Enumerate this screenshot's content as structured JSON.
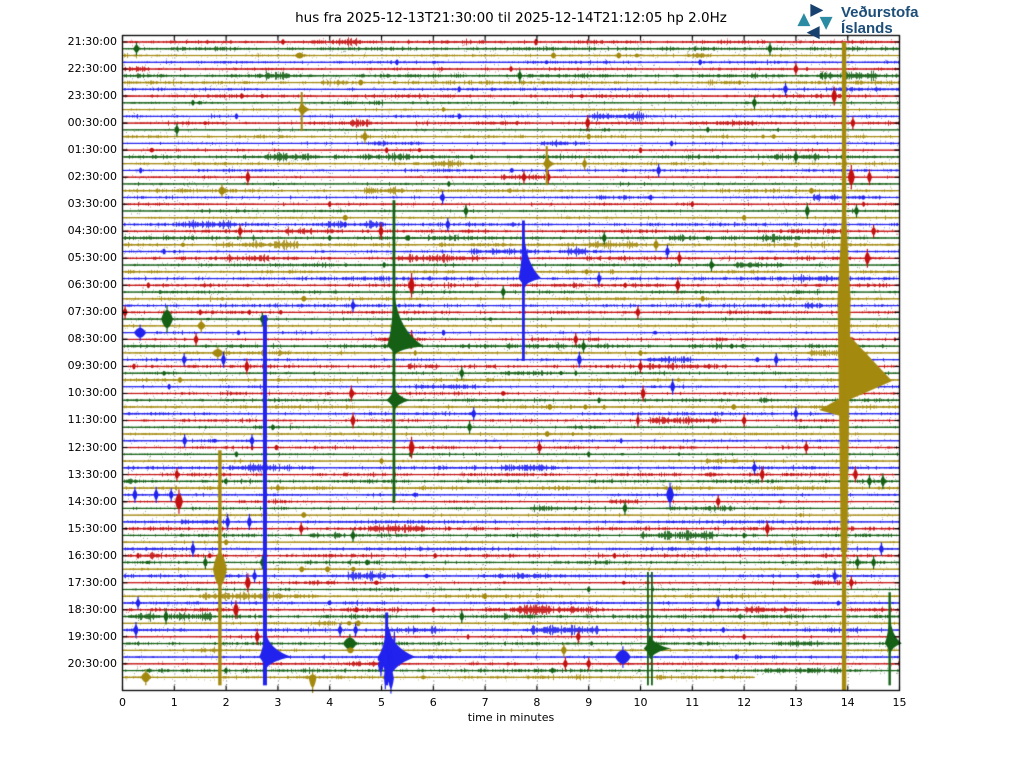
{
  "title": "hus fra 2025-12-13T21:30:00 til 2025-12-14T21:12:05 hp 2.0Hz",
  "logo": {
    "line1": "Veðurstofa",
    "line2": "Íslands",
    "navy": "#17416e",
    "teal": "#2b8ba3",
    "text_color": "#1c4e79"
  },
  "axis": {
    "x_label": "time in minutes",
    "x_ticks": [
      "0",
      "1",
      "2",
      "3",
      "4",
      "5",
      "6",
      "7",
      "8",
      "9",
      "10",
      "11",
      "12",
      "13",
      "14",
      "15"
    ],
    "y_ticks": [
      "21:30:00",
      "22:30:00",
      "23:30:00",
      "00:30:00",
      "01:30:00",
      "02:30:00",
      "03:30:00",
      "04:30:00",
      "05:30:00",
      "06:30:00",
      "07:30:00",
      "08:30:00",
      "09:30:00",
      "10:30:00",
      "11:30:00",
      "12:30:00",
      "13:30:00",
      "14:30:00",
      "15:30:00",
      "16:30:00",
      "17:30:00",
      "18:30:00",
      "19:30:00",
      "20:30:00"
    ]
  },
  "chart_data": {
    "type": "helicorder",
    "xlim": [
      0,
      15
    ],
    "minutes_per_line": 15,
    "lines": 95,
    "first_line_start": "2025-12-13T21:30:00",
    "last_line_end_minute": 12.2,
    "color_cycle": [
      "red",
      "green",
      "olive",
      "blue"
    ],
    "colors": {
      "red": "#c41010",
      "green": "#156015",
      "olive": "#a4890f",
      "blue": "#2222ee"
    },
    "grid": {
      "vertical_dotted_every_minute": true
    },
    "events_major": [
      {
        "name": "green-event",
        "row": 45,
        "minute": 5.24,
        "clip_rows": [
          24,
          67
        ],
        "clip_w": 2.8,
        "blobs": [
          {
            "row": 45,
            "up": 52,
            "dn": 9,
            "tail": 30,
            "lead": 7
          },
          {
            "row": 53,
            "up": 13,
            "dn": 11,
            "tail": 16,
            "lead": 8
          }
        ]
      },
      {
        "name": "blue-event",
        "row": 35,
        "minute": 7.74,
        "clip_rows": [
          27,
          46
        ],
        "clip_w": 2.8,
        "blobs": [
          {
            "row": 35,
            "up": 46,
            "dn": 10,
            "tail": 18,
            "lead": 5
          }
        ]
      },
      {
        "name": "large-olive-event",
        "row": 50,
        "minute": 13.93,
        "style": "huge"
      },
      {
        "name": "blue-event-2",
        "row": 91,
        "minute": 2.75,
        "clip_rows": [
          41,
          94
        ],
        "clip_w": 4,
        "blobs": [
          {
            "row": 91,
            "up": 25,
            "dn": 13,
            "tail": 27,
            "lead": 6
          }
        ]
      },
      {
        "name": "olive-event",
        "row": 78,
        "minute": 1.88,
        "clip_rows": [
          61,
          94
        ],
        "clip_w": 3.4,
        "lens": {
          "amp": 17,
          "w": 7
        }
      },
      {
        "name": "green-event-2",
        "row": 89,
        "minute": 10.18,
        "clip_rows": [
          79,
          94
        ],
        "clip_w": 1.8,
        "double": true,
        "blobs": [
          {
            "row": 89,
            "up": 13,
            "dn": 11,
            "tail": 21,
            "lead": 6,
            "dy": 5
          }
        ]
      },
      {
        "name": "green-event-3",
        "row": 89,
        "minute": 14.81,
        "clip_rows": [
          82,
          94
        ],
        "clip_w": 2.4,
        "blobs": [
          {
            "row": 89,
            "up": 26,
            "dn": 11,
            "tail": 12,
            "lead": 5
          }
        ]
      },
      {
        "name": "blue-event-3",
        "row": 91,
        "minute": 5.1,
        "clip_rows": [
          85,
          94
        ],
        "clip_w": 3,
        "ragged": true,
        "blobs": [
          {
            "row": 91,
            "up": 33,
            "dn": 27,
            "tail": 29,
            "lead": 9
          }
        ]
      },
      {
        "name": "olive-mini-1",
        "row": 10,
        "minute": 3.46,
        "clip_rows": [
          8,
          12
        ],
        "clip_w": 2,
        "blobs": [
          {
            "row": 10,
            "up": 8,
            "dn": 8,
            "tail": 9,
            "lead": 4
          }
        ]
      },
      {
        "name": "olive-mini-2",
        "row": 18,
        "minute": 8.19,
        "clip_rows": [
          16,
          20
        ],
        "clip_w": 2,
        "blobs": [
          {
            "row": 18,
            "up": 8,
            "dn": 8,
            "tail": 9,
            "lead": 4
          }
        ]
      }
    ],
    "events_small": [
      [
        0,
        3.1,
        3,
        2
      ],
      [
        0,
        7.98,
        3.5,
        2
      ],
      [
        4,
        7.5,
        3,
        2
      ],
      [
        4,
        13.0,
        4,
        2.5
      ],
      [
        8,
        2.3,
        3,
        2
      ],
      [
        8,
        13.74,
        6,
        3
      ],
      [
        12,
        8.98,
        5,
        2.5
      ],
      [
        12,
        14.1,
        4,
        2.5
      ],
      [
        16,
        5.1,
        3,
        2
      ],
      [
        16,
        10.0,
        3,
        2
      ],
      [
        20,
        2.42,
        5,
        2.5
      ],
      [
        20,
        7.75,
        4,
        2.5
      ],
      [
        20,
        8.22,
        4,
        2.5
      ],
      [
        20,
        14.07,
        8,
        3.5
      ],
      [
        20,
        14.42,
        5,
        2.5
      ],
      [
        24,
        4.0,
        3,
        2
      ],
      [
        24,
        11.0,
        3,
        2
      ],
      [
        28,
        2.27,
        4,
        2.5
      ],
      [
        28,
        4.99,
        5,
        2.5
      ],
      [
        28,
        14.5,
        4,
        2.5
      ],
      [
        32,
        10.75,
        4,
        2.5
      ],
      [
        32,
        14.38,
        6,
        3
      ],
      [
        36,
        0.5,
        3,
        2
      ],
      [
        36,
        5.58,
        8,
        3
      ],
      [
        36,
        10.72,
        5,
        2.5
      ],
      [
        40,
        0.05,
        4,
        2.5
      ],
      [
        40,
        1.5,
        3,
        2
      ],
      [
        40,
        9.95,
        4,
        2.5
      ],
      [
        44,
        1.42,
        4,
        2.5
      ],
      [
        44,
        5.58,
        6,
        2.5
      ],
      [
        44,
        8.75,
        4,
        2.5
      ],
      [
        48,
        0.22,
        3,
        2
      ],
      [
        48,
        2.4,
        5,
        2.5
      ],
      [
        48,
        10.0,
        4,
        2.5
      ],
      [
        52,
        4.42,
        5,
        2.5
      ],
      [
        52,
        10.05,
        5,
        2.5
      ],
      [
        56,
        4.45,
        5,
        2.5
      ],
      [
        56,
        9.95,
        4,
        2
      ],
      [
        56,
        12.0,
        4,
        2.5
      ],
      [
        60,
        5.58,
        7,
        3
      ],
      [
        60,
        8.05,
        4,
        2.5
      ],
      [
        60,
        13.2,
        4,
        2.5
      ],
      [
        64,
        1.05,
        4,
        2.5
      ],
      [
        64,
        12.35,
        5,
        2.5
      ],
      [
        64,
        14.15,
        5,
        2.5
      ],
      [
        68,
        1.09,
        8,
        4
      ],
      [
        68,
        11.5,
        4,
        2.5
      ],
      [
        72,
        3.45,
        4,
        2.5
      ],
      [
        72,
        12.45,
        5,
        2.5
      ],
      [
        76,
        0.3,
        3,
        2
      ],
      [
        76,
        9.5,
        3,
        2
      ],
      [
        80,
        2.42,
        6,
        3
      ],
      [
        80,
        14.07,
        4,
        2.5
      ],
      [
        84,
        2.19,
        6,
        3
      ],
      [
        84,
        6.0,
        3,
        2
      ],
      [
        88,
        2.6,
        5,
        2.5
      ],
      [
        88,
        8.8,
        4,
        2.5
      ],
      [
        88,
        12.0,
        3,
        2
      ],
      [
        92,
        8.55,
        4,
        2.5
      ],
      [
        92,
        9.0,
        4,
        2.5
      ],
      [
        1,
        0.27,
        4,
        3
      ],
      [
        1,
        12.5,
        4,
        2.5
      ],
      [
        5,
        7.67,
        4,
        2.5
      ],
      [
        5,
        13.5,
        3,
        2
      ],
      [
        9,
        1.36,
        3,
        2
      ],
      [
        9,
        12.2,
        4,
        2.5
      ],
      [
        13,
        1.05,
        4,
        2.5
      ],
      [
        13,
        11.3,
        3,
        2
      ],
      [
        17,
        13.0,
        4,
        2.5
      ],
      [
        21,
        6.3,
        3,
        2
      ],
      [
        25,
        6.63,
        4,
        2.5
      ],
      [
        25,
        13.22,
        5,
        2.5
      ],
      [
        25,
        14.17,
        4,
        2.5
      ],
      [
        29,
        4.0,
        3,
        2
      ],
      [
        29,
        9.3,
        4,
        2.5
      ],
      [
        33,
        5.05,
        3,
        2
      ],
      [
        33,
        11.37,
        4,
        2.5
      ],
      [
        37,
        7.35,
        4,
        2.5
      ],
      [
        41,
        0.86,
        9,
        6
      ],
      [
        41,
        2.7,
        4,
        2.5
      ],
      [
        45,
        8.9,
        4,
        2.5
      ],
      [
        49,
        0.8,
        2.5,
        2
      ],
      [
        49,
        6.55,
        4,
        2.5
      ],
      [
        53,
        9.2,
        3,
        2
      ],
      [
        57,
        2.9,
        3,
        2
      ],
      [
        57,
        6.7,
        4,
        2.5
      ],
      [
        61,
        2.2,
        3,
        2
      ],
      [
        61,
        9.0,
        3,
        2
      ],
      [
        65,
        2.0,
        3,
        2
      ],
      [
        65,
        14.42,
        4,
        2.5
      ],
      [
        65,
        14.68,
        5,
        2.5
      ],
      [
        69,
        9.7,
        4,
        2.5
      ],
      [
        73,
        4.45,
        4,
        2.5
      ],
      [
        73,
        12.0,
        3,
        2
      ],
      [
        77,
        1.6,
        4,
        2.5
      ],
      [
        77,
        2.7,
        4,
        2.5
      ],
      [
        77,
        14.19,
        4,
        2.5
      ],
      [
        77,
        14.5,
        4,
        2.5
      ],
      [
        81,
        9.0,
        3,
        2
      ],
      [
        85,
        0.84,
        5,
        2.5
      ],
      [
        85,
        6.55,
        4,
        2.5
      ],
      [
        89,
        4.39,
        6,
        7
      ],
      [
        93,
        2.0,
        3,
        2
      ],
      [
        93,
        8.3,
        3,
        2
      ],
      [
        2,
        3.42,
        3,
        5
      ],
      [
        2,
        8.32,
        3,
        3
      ],
      [
        2,
        9.58,
        3,
        3
      ],
      [
        6,
        4.6,
        3,
        3
      ],
      [
        14,
        4.68,
        4,
        3
      ],
      [
        14,
        9.0,
        3,
        2.5
      ],
      [
        18,
        8.92,
        4,
        2.5
      ],
      [
        22,
        1.92,
        4,
        4
      ],
      [
        22,
        13.3,
        3,
        3
      ],
      [
        26,
        4.3,
        3,
        3
      ],
      [
        26,
        12.0,
        3,
        2.5
      ],
      [
        30,
        10.3,
        4,
        3
      ],
      [
        34,
        7.9,
        3,
        2.5
      ],
      [
        38,
        3.5,
        3,
        3
      ],
      [
        38,
        11.2,
        3,
        2.5
      ],
      [
        42,
        1.52,
        4,
        4
      ],
      [
        46,
        1.84,
        4,
        6
      ],
      [
        46,
        10.0,
        3,
        2.5
      ],
      [
        50,
        1.11,
        3,
        2.5
      ],
      [
        54,
        8.25,
        3,
        3
      ],
      [
        54,
        11.8,
        3,
        3
      ],
      [
        58,
        8.2,
        3,
        3
      ],
      [
        62,
        5.0,
        3,
        2.5
      ],
      [
        66,
        3.0,
        3,
        2.5
      ],
      [
        70,
        3.5,
        3,
        3
      ],
      [
        74,
        2.0,
        3,
        2.5
      ],
      [
        78,
        3.46,
        3,
        3
      ],
      [
        78,
        3.96,
        3,
        3
      ],
      [
        82,
        7.0,
        3,
        2.5
      ],
      [
        86,
        4.55,
        3,
        3
      ],
      [
        90,
        4.4,
        3,
        4
      ],
      [
        90,
        8.52,
        4,
        3
      ],
      [
        94,
        0.45,
        5,
        5
      ],
      [
        94,
        3.67,
        6,
        4,
        1
      ],
      [
        3,
        5.3,
        3,
        2
      ],
      [
        3,
        11.15,
        3,
        2
      ],
      [
        7,
        6.5,
        3,
        2
      ],
      [
        7,
        12.8,
        4,
        2.5
      ],
      [
        11,
        2.2,
        3,
        2
      ],
      [
        11,
        6.5,
        3,
        2
      ],
      [
        15,
        10.6,
        3,
        2
      ],
      [
        19,
        0.35,
        3,
        2
      ],
      [
        19,
        10.35,
        4,
        2.5
      ],
      [
        23,
        6.18,
        4,
        2.5
      ],
      [
        23,
        10.2,
        3,
        2
      ],
      [
        27,
        4.3,
        3,
        2
      ],
      [
        27,
        6.28,
        4,
        2.5
      ],
      [
        31,
        0.8,
        3,
        2
      ],
      [
        31,
        10.52,
        4,
        2.5
      ],
      [
        35,
        9.2,
        4,
        2.5
      ],
      [
        39,
        4.45,
        4,
        2.5
      ],
      [
        43,
        0.34,
        5,
        6
      ],
      [
        43,
        6.2,
        3,
        2
      ],
      [
        47,
        1.19,
        4,
        2.5
      ],
      [
        47,
        1.95,
        5,
        2.5
      ],
      [
        47,
        8.82,
        5,
        2.5
      ],
      [
        47,
        12.62,
        4,
        2.5
      ],
      [
        51,
        0.9,
        3,
        2
      ],
      [
        51,
        10.62,
        5,
        2.5
      ],
      [
        55,
        6.78,
        4,
        2.5
      ],
      [
        55,
        13.0,
        4,
        2.5
      ],
      [
        59,
        1.2,
        4,
        2.5
      ],
      [
        59,
        2.5,
        4,
        2.5
      ],
      [
        63,
        12.2,
        4,
        2.5
      ],
      [
        67,
        0.24,
        5,
        2.5
      ],
      [
        67,
        0.65,
        5,
        2.5
      ],
      [
        67,
        0.94,
        4,
        2.5
      ],
      [
        67,
        10.57,
        8,
        4
      ],
      [
        71,
        2.03,
        5,
        2.5
      ],
      [
        71,
        2.45,
        5,
        2.5
      ],
      [
        75,
        1.36,
        5,
        2.5
      ],
      [
        75,
        14.65,
        4,
        2.5
      ],
      [
        79,
        2.55,
        4,
        2.5
      ],
      [
        79,
        13.75,
        4,
        2.5
      ],
      [
        83,
        0.3,
        4,
        2.5
      ],
      [
        83,
        11.5,
        4,
        2.5
      ],
      [
        87,
        0.26,
        5,
        2.5
      ],
      [
        87,
        4.2,
        4,
        2.5
      ],
      [
        87,
        4.5,
        4,
        2.5
      ],
      [
        87,
        11.6,
        3,
        2
      ],
      [
        91,
        9.66,
        7,
        8
      ],
      [
        91,
        11.85,
        3,
        2
      ]
    ]
  }
}
